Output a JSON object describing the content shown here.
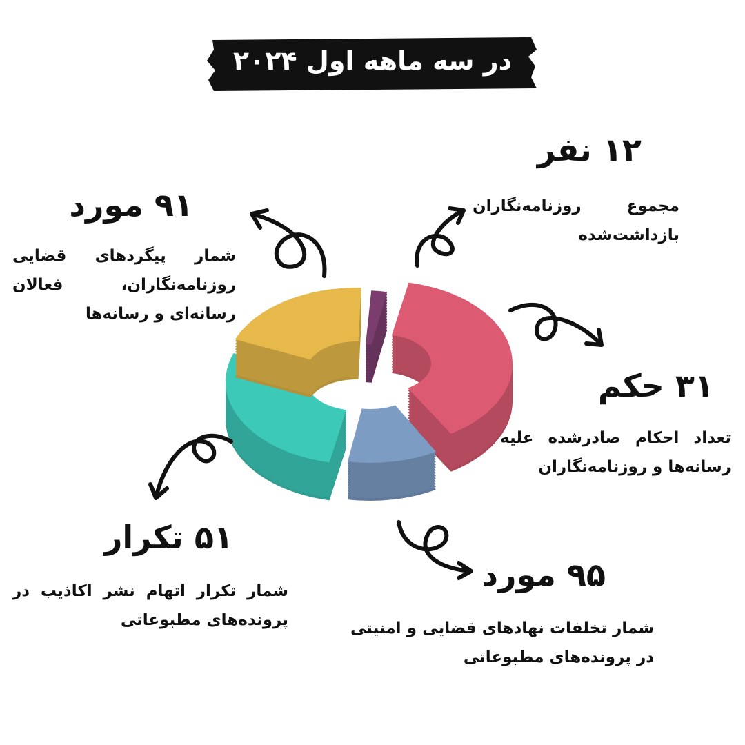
{
  "title": "در سه ماهه اول ۲۰۲۴",
  "stats": [
    {
      "value": "۱۲ نفر",
      "description": "مجموع روزنامه‌نگاران بازداشت‌شده"
    },
    {
      "value": "۹۱ مورد",
      "description": "شمار پیگردهای قضایی روزنامه‌نگاران، فعالان رسانه‌ای و رسانه‌ها"
    },
    {
      "value": "۳۱ حکم",
      "description": "تعداد احکام صادرشده علیه رسانه‌ها و روزنامه‌نگاران"
    },
    {
      "value": "۵۱ تکرار",
      "description": "شمار تکرار اتهام نشر اکاذیب در پرونده‌های مطبوعاتی"
    },
    {
      "value": "۹۵ مورد",
      "description": "شمار تخلفات نهادهای قضایی و امنیتی در پرونده‌های مطبوعاتی"
    }
  ],
  "donut_colors": {
    "pink": "#dc5a72",
    "blue": "#7c9cc4",
    "teal": "#3cc9b8",
    "yellow": "#e6b94a",
    "purple": "#7a3d6e"
  },
  "banner_color": "#111111"
}
